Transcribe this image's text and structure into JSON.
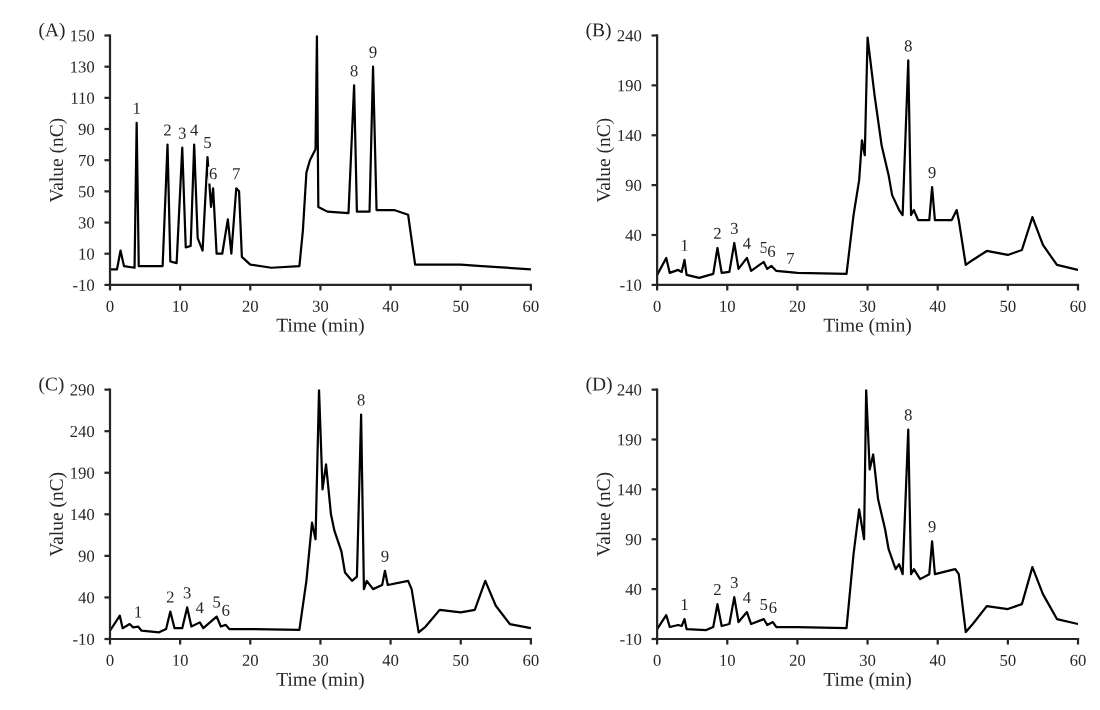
{
  "chart_data": [
    {
      "type": "line",
      "title": "(A)",
      "xlabel": "Time (min)",
      "ylabel": "Value (nC)",
      "xlim": [
        0,
        60
      ],
      "xticks": [
        0,
        10,
        20,
        30,
        40,
        50,
        60
      ],
      "ylim": [
        -10,
        150
      ],
      "yticks": [
        -10,
        10,
        30,
        50,
        70,
        90,
        110,
        130,
        150
      ],
      "grid": false,
      "legend": false,
      "marker": "none",
      "line_style": "solid",
      "series": [
        {
          "color": "#000000",
          "x": [
            0,
            1,
            1.5,
            2,
            3.5,
            3.8,
            4.1,
            7.5,
            8.2,
            8.6,
            9.5,
            10.3,
            10.8,
            11.5,
            12,
            12.5,
            13.2,
            13.9,
            14.4,
            14.7,
            15.2,
            16,
            16.8,
            17.3,
            18,
            18.4,
            18.8,
            20,
            23,
            27,
            27.5,
            28,
            28.5,
            29.3,
            29.5,
            29.7,
            31,
            34,
            34.8,
            35.2,
            37,
            37.5,
            38,
            40.5,
            42.5,
            43.5,
            50,
            53,
            60
          ],
          "values": [
            0,
            0,
            12,
            2,
            1,
            94,
            2,
            2,
            80,
            5,
            4,
            78,
            14,
            15,
            80,
            20,
            12,
            72,
            40,
            52,
            10,
            10,
            32,
            10,
            52,
            50,
            8,
            3,
            1,
            2,
            25,
            62,
            70,
            77,
            150,
            40,
            37,
            36,
            118,
            37,
            37,
            130,
            38,
            38,
            35,
            3,
            3,
            2,
            0
          ]
        }
      ],
      "annotations": [
        {
          "text": "1",
          "x": 3.8,
          "y": 94
        },
        {
          "text": "2",
          "x": 8.2,
          "y": 80
        },
        {
          "text": "3",
          "x": 10.3,
          "y": 78
        },
        {
          "text": "4",
          "x": 12,
          "y": 80
        },
        {
          "text": "5",
          "x": 13.9,
          "y": 72
        },
        {
          "text": "6",
          "x": 14.7,
          "y": 52
        },
        {
          "text": "7",
          "x": 18,
          "y": 52
        },
        {
          "text": "8",
          "x": 34.8,
          "y": 118
        },
        {
          "text": "9",
          "x": 37.5,
          "y": 130
        }
      ]
    },
    {
      "type": "line",
      "title": "(B)",
      "xlabel": "Time (min)",
      "ylabel": "Value (nC)",
      "xlim": [
        0,
        60
      ],
      "xticks": [
        0,
        10,
        20,
        30,
        40,
        50,
        60
      ],
      "ylim": [
        -10,
        240
      ],
      "yticks": [
        -10,
        40,
        90,
        140,
        190,
        240
      ],
      "grid": false,
      "legend": false,
      "marker": "none",
      "line_style": "solid",
      "series": [
        {
          "color": "#000000",
          "x": [
            0,
            1.3,
            1.8,
            3,
            3.5,
            3.9,
            4.2,
            6,
            8,
            8.6,
            9.2,
            10.3,
            11,
            11.6,
            12.8,
            13.4,
            15.2,
            15.7,
            16.3,
            17,
            20,
            27,
            28,
            28.8,
            29.2,
            29.6,
            30,
            31,
            32,
            33,
            33.5,
            34.5,
            35,
            35.8,
            36.2,
            36.6,
            37.2,
            38.8,
            39.2,
            39.6,
            42,
            42.7,
            43,
            44,
            45,
            47,
            50,
            52,
            53.5,
            55,
            57,
            60
          ],
          "values": [
            0,
            17,
            2,
            5,
            3,
            15,
            0,
            -3,
            1,
            27,
            2,
            3,
            32,
            6,
            17,
            4,
            13,
            6,
            9,
            4,
            2,
            1,
            60,
            95,
            135,
            120,
            238,
            180,
            130,
            100,
            80,
            65,
            60,
            215,
            60,
            65,
            55,
            55,
            88,
            55,
            55,
            65,
            55,
            10,
            15,
            24,
            20,
            25,
            58,
            30,
            10,
            5
          ]
        }
      ],
      "annotations": [
        {
          "text": "1",
          "x": 3.9,
          "y": 15
        },
        {
          "text": "2",
          "x": 8.6,
          "y": 27
        },
        {
          "text": "3",
          "x": 11,
          "y": 32
        },
        {
          "text": "4",
          "x": 12.8,
          "y": 17
        },
        {
          "text": "5",
          "x": 15.2,
          "y": 13
        },
        {
          "text": "6",
          "x": 16.3,
          "y": 9
        },
        {
          "text": "7",
          "x": 19,
          "y": 2
        },
        {
          "text": "8",
          "x": 35.8,
          "y": 215
        },
        {
          "text": "9",
          "x": 39.2,
          "y": 88
        }
      ]
    },
    {
      "type": "line",
      "title": "(C)",
      "xlabel": "Time (min)",
      "ylabel": "Value (nC)",
      "xlim": [
        0,
        60
      ],
      "xticks": [
        0,
        10,
        20,
        30,
        40,
        50,
        60
      ],
      "ylim": [
        -10,
        290
      ],
      "yticks": [
        -10,
        40,
        90,
        140,
        190,
        240,
        290
      ],
      "grid": false,
      "legend": false,
      "marker": "none",
      "line_style": "solid",
      "series": [
        {
          "color": "#000000",
          "x": [
            0,
            1.4,
            1.8,
            2.8,
            3.3,
            4,
            4.5,
            7,
            8,
            8.6,
            9.2,
            10.3,
            11,
            11.6,
            12.8,
            13.3,
            15.2,
            15.8,
            16.5,
            17,
            20,
            27,
            28,
            28.8,
            29.3,
            29.8,
            30.3,
            30.8,
            31.5,
            32,
            33,
            33.5,
            34.5,
            35.2,
            35.8,
            36.2,
            36.6,
            37.5,
            38.8,
            39.2,
            39.6,
            42.5,
            43,
            44,
            45,
            47,
            50,
            52,
            53.5,
            55,
            57,
            60
          ],
          "values": [
            0,
            18,
            3,
            8,
            4,
            5,
            0,
            -2,
            2,
            23,
            3,
            3,
            28,
            5,
            10,
            3,
            17,
            5,
            7,
            2,
            2,
            1,
            60,
            130,
            110,
            290,
            170,
            200,
            140,
            120,
            95,
            70,
            60,
            65,
            260,
            50,
            60,
            50,
            55,
            72,
            55,
            60,
            50,
            -2,
            5,
            25,
            22,
            25,
            60,
            30,
            8,
            3
          ]
        }
      ],
      "annotations": [
        {
          "text": "1",
          "x": 4,
          "y": 5
        },
        {
          "text": "2",
          "x": 8.6,
          "y": 23
        },
        {
          "text": "3",
          "x": 11,
          "y": 28
        },
        {
          "text": "4",
          "x": 12.8,
          "y": 10
        },
        {
          "text": "5",
          "x": 15.2,
          "y": 17
        },
        {
          "text": "6",
          "x": 16.5,
          "y": 7
        },
        {
          "text": "8",
          "x": 35.8,
          "y": 260
        },
        {
          "text": "9",
          "x": 39.2,
          "y": 72
        }
      ]
    },
    {
      "type": "line",
      "title": "(D)",
      "xlabel": "Time (min)",
      "ylabel": "Value (nC)",
      "xlim": [
        0,
        60
      ],
      "xticks": [
        0,
        10,
        20,
        30,
        40,
        50,
        60
      ],
      "ylim": [
        -10,
        240
      ],
      "yticks": [
        -10,
        40,
        90,
        140,
        190,
        240
      ],
      "grid": false,
      "legend": false,
      "marker": "none",
      "line_style": "solid",
      "series": [
        {
          "color": "#000000",
          "x": [
            0,
            1.3,
            1.8,
            3,
            3.5,
            3.9,
            4.2,
            7,
            8,
            8.6,
            9.2,
            10.3,
            11,
            11.6,
            12.8,
            13.4,
            15.2,
            15.7,
            16.5,
            17,
            20,
            27,
            28,
            28.8,
            29.5,
            29.8,
            30.3,
            30.8,
            31.5,
            32.5,
            33,
            34,
            34.5,
            35,
            35.8,
            36.2,
            36.6,
            37.5,
            38.8,
            39.2,
            39.6,
            42.5,
            43,
            44,
            45,
            47,
            50,
            52,
            53.5,
            55,
            57,
            60
          ],
          "values": [
            0,
            14,
            2,
            4,
            3,
            10,
            0,
            -1,
            2,
            25,
            3,
            5,
            32,
            7,
            17,
            5,
            10,
            4,
            7,
            2,
            2,
            1,
            75,
            120,
            90,
            240,
            160,
            175,
            130,
            100,
            80,
            60,
            65,
            55,
            200,
            55,
            60,
            50,
            55,
            88,
            55,
            60,
            55,
            -3,
            5,
            23,
            20,
            25,
            62,
            35,
            10,
            5
          ]
        }
      ],
      "annotations": [
        {
          "text": "1",
          "x": 3.9,
          "y": 10
        },
        {
          "text": "2",
          "x": 8.6,
          "y": 25
        },
        {
          "text": "3",
          "x": 11,
          "y": 32
        },
        {
          "text": "4",
          "x": 12.8,
          "y": 17
        },
        {
          "text": "5",
          "x": 15.2,
          "y": 10
        },
        {
          "text": "6",
          "x": 16.5,
          "y": 7
        },
        {
          "text": "8",
          "x": 35.8,
          "y": 200
        },
        {
          "text": "9",
          "x": 39.2,
          "y": 88
        }
      ]
    }
  ]
}
